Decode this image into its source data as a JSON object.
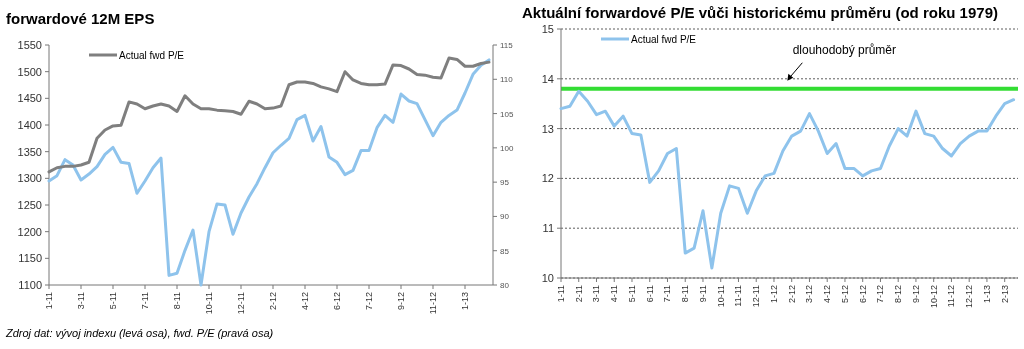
{
  "chart_data": [
    {
      "type": "line",
      "title": "forwardové 12M EPS",
      "categories": [
        "1-11",
        null,
        null,
        null,
        "3-11",
        null,
        null,
        null,
        "5-11",
        null,
        null,
        null,
        "7-11",
        null,
        null,
        null,
        "8-11",
        null,
        null,
        null,
        "10-11",
        null,
        null,
        null,
        "12-11",
        null,
        null,
        null,
        "2-12",
        null,
        null,
        null,
        "4-12",
        null,
        null,
        null,
        "6-12",
        null,
        null,
        null,
        "7-12",
        null,
        null,
        null,
        "9-12",
        null,
        null,
        null,
        "11-12",
        null,
        null,
        null,
        "1-13",
        null,
        null,
        null
      ],
      "series": [
        {
          "color": "#8ec3ec",
          "values": [
            1295,
            1305,
            1335,
            1325,
            1297,
            1308,
            1322,
            1345,
            1358,
            1330,
            1328,
            1272,
            1295,
            1320,
            1338,
            1118,
            1122,
            1165,
            1203,
            1100,
            1200,
            1252,
            1250,
            1195,
            1235,
            1265,
            1290,
            1320,
            1348,
            1362,
            1375,
            1410,
            1418,
            1370,
            1397,
            1340,
            1330,
            1307,
            1315,
            1352,
            1352,
            1395,
            1418,
            1405,
            1458,
            1445,
            1440,
            1410,
            1380,
            1405,
            1418,
            1428,
            1460,
            1495,
            1512,
            1522
          ]
        },
        {
          "name": "Actual fwd P/E",
          "color": "#7f7f7f",
          "axis": "y2",
          "values": [
            96.5,
            97.1,
            97.3,
            97.3,
            97.5,
            97.9,
            101.4,
            102.6,
            103.2,
            103.3,
            106.7,
            106.4,
            105.7,
            106.1,
            106.4,
            106.1,
            105.3,
            107.6,
            106.4,
            105.7,
            105.7,
            105.5,
            105.4,
            105.3,
            104.9,
            106.8,
            106.4,
            105.7,
            105.8,
            106.1,
            109.2,
            109.6,
            109.6,
            109.4,
            108.9,
            108.6,
            108.2,
            111.1,
            109.9,
            109.4,
            109.2,
            109.2,
            109.3,
            112.1,
            112.0,
            111.5,
            110.7,
            110.6,
            110.3,
            110.2,
            113.1,
            112.9,
            111.9,
            111.9,
            112.3,
            112.5
          ]
        }
      ],
      "ylim": [
        1100,
        1550
      ],
      "yticks": [
        1100,
        1150,
        1200,
        1250,
        1300,
        1350,
        1400,
        1450,
        1500,
        1550
      ],
      "y2lim": [
        80,
        115
      ],
      "y2ticks": [
        80,
        85,
        90,
        95,
        100,
        105,
        110,
        115
      ],
      "legend": "top left",
      "grid": false,
      "annotations": [
        "Zdroj dat: vývoj indexu (levá osa), fwd. P/E (pravá osa)"
      ]
    },
    {
      "type": "line",
      "title": "Aktuální forwardové P/E vůči historickému průměru (od roku 1979)",
      "categories": [
        "1-11",
        null,
        "2-11",
        null,
        "3-11",
        null,
        "4-11",
        null,
        "5-11",
        null,
        "6-11",
        null,
        "7-11",
        null,
        "8-11",
        null,
        "9-11",
        null,
        "10-11",
        null,
        "11-11",
        null,
        "12-11",
        null,
        "1-12",
        null,
        "2-12",
        null,
        "3-12",
        null,
        "4-12",
        null,
        "5-12",
        null,
        "6-12",
        null,
        "7-12",
        null,
        "8-12",
        null,
        "9-12",
        null,
        "10-12",
        null,
        "11-12",
        null,
        "12-12",
        null,
        "1-13",
        null,
        "2-13",
        null
      ],
      "series": [
        {
          "name": "Actual fwd P/E",
          "color": "#8ec3ec",
          "values": [
            13.4,
            13.45,
            13.75,
            13.55,
            13.28,
            13.35,
            13.05,
            13.25,
            12.9,
            12.87,
            11.92,
            12.15,
            12.5,
            12.6,
            10.5,
            10.6,
            11.35,
            10.2,
            11.3,
            11.85,
            11.8,
            11.3,
            11.75,
            12.05,
            12.1,
            12.55,
            12.85,
            12.95,
            13.3,
            12.95,
            12.5,
            12.7,
            12.2,
            12.2,
            12.05,
            12.15,
            12.2,
            12.65,
            13.0,
            12.85,
            13.35,
            12.9,
            12.85,
            12.6,
            12.45,
            12.7,
            12.85,
            12.95,
            12.95,
            13.25,
            13.5,
            13.58
          ]
        }
      ],
      "ylim": [
        10,
        15
      ],
      "yticks": [
        10,
        11,
        12,
        13,
        14,
        15
      ],
      "grid": "y",
      "legend": "top left",
      "ref_lines": [
        {
          "axis": "y",
          "value": 13.8,
          "label": "dlouhodobý průměr",
          "color": "#33dd33"
        }
      ]
    }
  ]
}
